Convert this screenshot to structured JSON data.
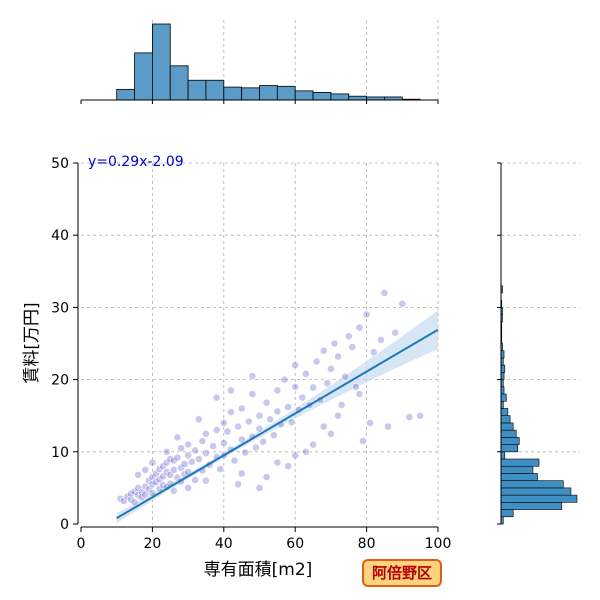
{
  "chart_data": {
    "type": "scatter",
    "xlabel": "専有面積[m2]",
    "ylabel": "賃料[万円]",
    "xlim": [
      0,
      100
    ],
    "ylim": [
      0,
      50
    ],
    "x_ticks": [
      "0",
      "20",
      "40",
      "60",
      "80",
      "100"
    ],
    "y_ticks": [
      "0",
      "10",
      "20",
      "30",
      "40",
      "50"
    ],
    "grid": true,
    "regression": {
      "equation_label": "y=0.29x-2.09",
      "slope": 0.29,
      "intercept": -2.09,
      "x_range": [
        10,
        100
      ],
      "line_color": "#1f77b4",
      "band_color": "#c6dbef"
    },
    "points": [
      [
        11,
        3.5
      ],
      [
        12,
        3.2
      ],
      [
        13,
        3.8
      ],
      [
        14,
        3.4
      ],
      [
        14,
        4.2
      ],
      [
        15,
        3.0
      ],
      [
        15,
        4.5
      ],
      [
        16,
        4.0
      ],
      [
        16,
        5.0
      ],
      [
        17,
        4.4
      ],
      [
        17,
        3.7
      ],
      [
        18,
        5.2
      ],
      [
        18,
        4.1
      ],
      [
        19,
        4.8
      ],
      [
        19,
        6.0
      ],
      [
        20,
        5.5
      ],
      [
        20,
        4.3
      ],
      [
        20,
        6.5
      ],
      [
        21,
        5.8
      ],
      [
        21,
        7.0
      ],
      [
        22,
        6.2
      ],
      [
        22,
        4.9
      ],
      [
        22,
        7.6
      ],
      [
        23,
        5.4
      ],
      [
        23,
        8.0
      ],
      [
        23,
        6.6
      ],
      [
        24,
        7.2
      ],
      [
        24,
        5.1
      ],
      [
        24,
        8.5
      ],
      [
        25,
        6.8
      ],
      [
        25,
        9.0
      ],
      [
        25,
        5.6
      ],
      [
        26,
        7.5
      ],
      [
        26,
        8.8
      ],
      [
        26,
        4.6
      ],
      [
        27,
        6.4
      ],
      [
        27,
        9.2
      ],
      [
        28,
        7.8
      ],
      [
        28,
        5.9
      ],
      [
        28,
        10.5
      ],
      [
        29,
        8.3
      ],
      [
        29,
        6.9
      ],
      [
        30,
        9.5
      ],
      [
        30,
        7.2
      ],
      [
        30,
        11.0
      ],
      [
        31,
        8.6
      ],
      [
        32,
        10.2
      ],
      [
        32,
        6.1
      ],
      [
        33,
        9.0
      ],
      [
        34,
        11.5
      ],
      [
        34,
        7.4
      ],
      [
        35,
        12.5
      ],
      [
        35,
        9.8
      ],
      [
        36,
        8.2
      ],
      [
        37,
        10.8
      ],
      [
        38,
        13.0
      ],
      [
        38,
        9.3
      ],
      [
        39,
        7.6
      ],
      [
        40,
        11.2
      ],
      [
        40,
        14.0
      ],
      [
        40,
        9.5
      ],
      [
        41,
        12.8
      ],
      [
        42,
        10.3
      ],
      [
        42,
        15.5
      ],
      [
        43,
        8.8
      ],
      [
        44,
        13.5
      ],
      [
        45,
        11.7
      ],
      [
        45,
        16.0
      ],
      [
        46,
        9.9
      ],
      [
        47,
        14.2
      ],
      [
        48,
        12.1
      ],
      [
        48,
        18.0
      ],
      [
        49,
        10.6
      ],
      [
        50,
        15.0
      ],
      [
        50,
        13.2
      ],
      [
        51,
        11.4
      ],
      [
        52,
        16.8
      ],
      [
        53,
        14.5
      ],
      [
        54,
        12.3
      ],
      [
        55,
        18.5
      ],
      [
        55,
        15.6
      ],
      [
        56,
        13.8
      ],
      [
        57,
        20.0
      ],
      [
        58,
        16.2
      ],
      [
        59,
        14.1
      ],
      [
        60,
        19.0
      ],
      [
        60,
        22.0
      ],
      [
        61,
        15.8
      ],
      [
        62,
        17.5
      ],
      [
        63,
        20.8
      ],
      [
        64,
        16.5
      ],
      [
        65,
        18.9
      ],
      [
        66,
        22.5
      ],
      [
        67,
        17.2
      ],
      [
        68,
        24.0
      ],
      [
        69,
        19.5
      ],
      [
        70,
        21.5
      ],
      [
        71,
        25.0
      ],
      [
        72,
        15.0
      ],
      [
        72,
        23.2
      ],
      [
        74,
        20.4
      ],
      [
        75,
        26.0
      ],
      [
        76,
        24.5
      ],
      [
        77,
        19.0
      ],
      [
        78,
        27.2
      ],
      [
        79,
        11.5
      ],
      [
        80,
        29.0
      ],
      [
        81,
        14.0
      ],
      [
        82,
        23.8
      ],
      [
        84,
        25.5
      ],
      [
        85,
        32.0
      ],
      [
        86,
        13.5
      ],
      [
        88,
        26.5
      ],
      [
        90,
        30.5
      ],
      [
        92,
        14.8
      ],
      [
        95,
        15.0
      ],
      [
        45,
        7.0
      ],
      [
        50,
        5.0
      ],
      [
        55,
        8.5
      ],
      [
        60,
        9.5
      ],
      [
        65,
        11.0
      ],
      [
        70,
        12.5
      ],
      [
        35,
        6.0
      ],
      [
        30,
        5.0
      ],
      [
        38,
        17.5
      ],
      [
        42,
        18.5
      ],
      [
        48,
        20.5
      ],
      [
        52,
        6.5
      ],
      [
        58,
        8.0
      ],
      [
        63,
        10.0
      ],
      [
        68,
        13.5
      ],
      [
        73,
        16.5
      ],
      [
        78,
        18.0
      ],
      [
        44,
        5.5
      ],
      [
        33,
        14.5
      ],
      [
        27,
        12.0
      ],
      [
        24,
        10.0
      ],
      [
        20,
        8.5
      ],
      [
        18,
        7.5
      ],
      [
        16,
        6.8
      ]
    ],
    "point_color": "#4a4ac8",
    "top_histogram": {
      "bin_edges": [
        0,
        5,
        10,
        15,
        20,
        25,
        30,
        35,
        40,
        45,
        50,
        55,
        60,
        65,
        70,
        75,
        80,
        85,
        90,
        95,
        100
      ],
      "counts": [
        0,
        0,
        14,
        62,
        100,
        45,
        26,
        26,
        17,
        16,
        19,
        18,
        12,
        10,
        8,
        5,
        4,
        4,
        1,
        0
      ]
    },
    "right_histogram": {
      "bin_edges": [
        0,
        1,
        2,
        3,
        4,
        5,
        6,
        7,
        8,
        9,
        10,
        11,
        12,
        13,
        14,
        15,
        16,
        17,
        18,
        19,
        20,
        21,
        22,
        23,
        24,
        25,
        26,
        27,
        28,
        29,
        30,
        31,
        32,
        33
      ],
      "counts": [
        3,
        16,
        80,
        100,
        92,
        82,
        48,
        42,
        50,
        5,
        22,
        24,
        20,
        16,
        12,
        9,
        3,
        7,
        4,
        3,
        4,
        5,
        3,
        4,
        2,
        1,
        1,
        1,
        2,
        2,
        1,
        0,
        2
      ],
      "color": "#3f8fc4"
    }
  },
  "badge": {
    "label": "阿倍野区"
  }
}
